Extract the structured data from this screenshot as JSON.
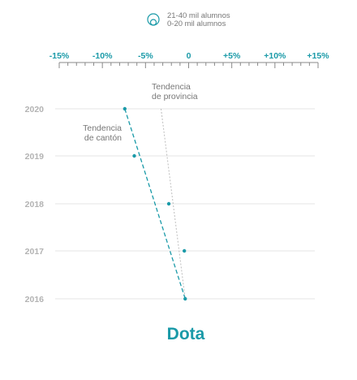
{
  "legend": {
    "label_large": "21-40 mil alumnos",
    "label_small": "0-20 mil alumnos"
  },
  "annotations": {
    "province_line1": "Tendencia",
    "province_line2": "de provincia",
    "canton_line1": "Tendencia",
    "canton_line2": "de cantón"
  },
  "colors": {
    "accent": "#1a9aa8",
    "grid": "#e6e6e6",
    "province_line": "#bdbdbd",
    "year_label": "#b3b3b3"
  },
  "chart_data": {
    "type": "scatter",
    "title": "Dota",
    "x_tick_labels": [
      "-15%",
      "-10%",
      "-5%",
      "0",
      "+5%",
      "+10%",
      "+15%"
    ],
    "xlim": [
      -15,
      15
    ],
    "y_categories": [
      "2020",
      "2019",
      "2018",
      "2017",
      "2016"
    ],
    "series": [
      {
        "values": [
          {
            "year": "2020",
            "x": -7.4
          },
          {
            "year": "2019",
            "x": -6.3
          },
          {
            "year": "2018",
            "x": -2.3
          },
          {
            "year": "2017",
            "x": -0.5
          },
          {
            "year": "2016",
            "x": -0.4
          }
        ]
      }
    ],
    "trend_canton": {
      "from": {
        "year": "2020",
        "x": -7.4
      },
      "to": {
        "year": "2016",
        "x": -0.4
      }
    },
    "trend_province": {
      "from": {
        "year": "2020",
        "x": -3.2
      },
      "to": {
        "year": "2016",
        "x": -0.4
      }
    }
  }
}
